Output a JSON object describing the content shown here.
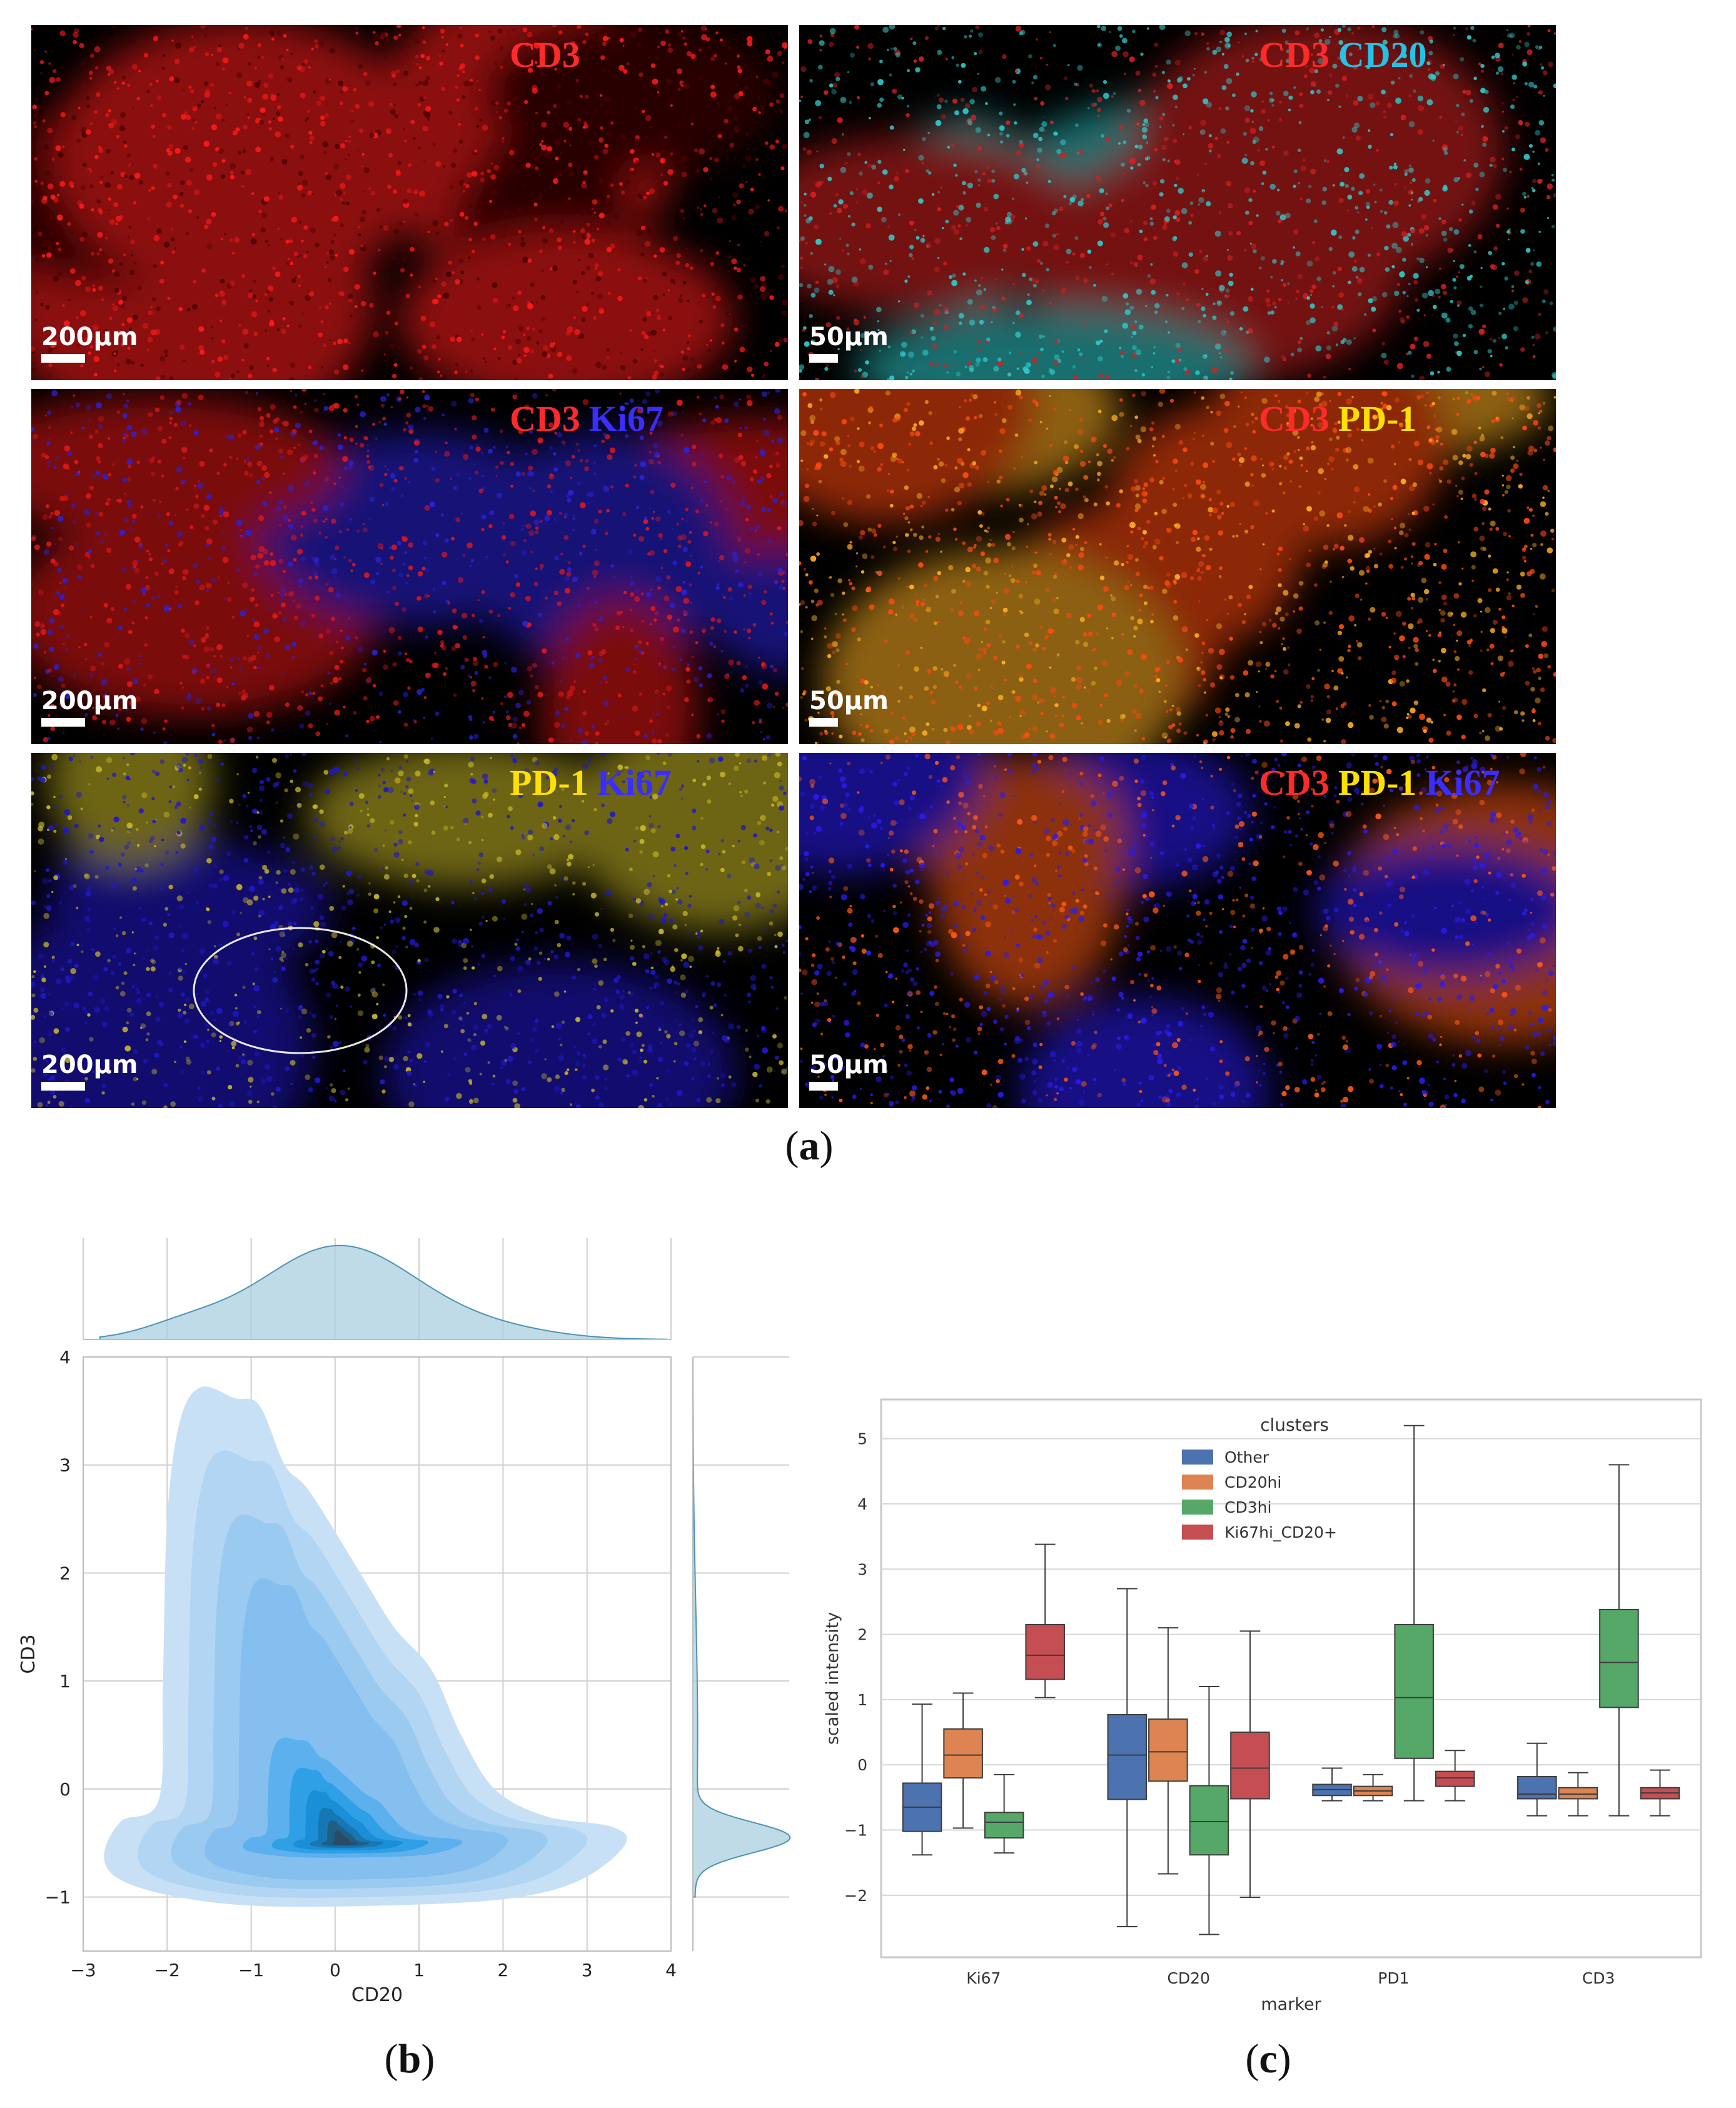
{
  "figure_a": {
    "label": "a",
    "panels": [
      {
        "markers": [
          {
            "text": "CD3",
            "color": "#ff2a2a"
          }
        ],
        "scale_bar": "200µm",
        "background": [
          "#ff1a1a",
          "#4a0000"
        ]
      },
      {
        "markers": [
          {
            "text": "CD3",
            "color": "#ff2a2a"
          },
          {
            "text": "CD20",
            "color": "#23c3e8"
          }
        ],
        "scale_bar": "50µm",
        "background": [
          "#2ec9c9",
          "#d42020"
        ]
      },
      {
        "markers": [
          {
            "text": "CD3",
            "color": "#ff2a2a"
          },
          {
            "text": "Ki67",
            "color": "#3a2dff"
          }
        ],
        "scale_bar": "200µm",
        "background": [
          "#e01818",
          "#2a22d8"
        ]
      },
      {
        "markers": [
          {
            "text": "CD3",
            "color": "#ff2a2a"
          },
          {
            "text": "PD-1",
            "color": "#ffe000"
          }
        ],
        "scale_bar": "50µm",
        "background": [
          "#ff4a10",
          "#ffb020"
        ]
      },
      {
        "markers": [
          {
            "text": "PD-1",
            "color": "#ffe000"
          },
          {
            "text": "Ki67",
            "color": "#3a2dff"
          }
        ],
        "scale_bar": "200µm",
        "background": [
          "#2018c8",
          "#c8b828"
        ]
      },
      {
        "markers": [
          {
            "text": "CD3",
            "color": "#ff2a2a"
          },
          {
            "text": "PD-1",
            "color": "#ffe000"
          },
          {
            "text": "Ki67",
            "color": "#3a2dff"
          }
        ],
        "scale_bar": "50µm",
        "background": [
          "#2a1cf0",
          "#ff5a14"
        ]
      }
    ]
  },
  "figure_b": {
    "label": "b",
    "chart_data": {
      "type": "kde-joint",
      "xlabel": "CD20",
      "ylabel": "CD3",
      "xlim": [
        -3,
        4
      ],
      "ylim": [
        -1.5,
        4
      ],
      "x_ticks": [
        -3,
        -2,
        -1,
        0,
        1,
        2,
        3,
        4
      ],
      "y_ticks": [
        -1,
        0,
        1,
        2,
        3,
        4
      ],
      "density_peak": {
        "x": 0.1,
        "y": -0.5
      },
      "color": "#5aa8e6",
      "marginal_color": "#a9cfe0"
    }
  },
  "figure_c": {
    "label": "c",
    "chart_data": {
      "type": "box",
      "xlabel": "marker",
      "ylabel": "scaled intensity",
      "categories": [
        "Ki67",
        "CD20",
        "PD1",
        "CD3"
      ],
      "ylim": [
        -2.95,
        5.6
      ],
      "y_ticks": [
        -2,
        -1,
        0,
        1,
        2,
        3,
        4,
        5
      ],
      "legend_title": "clusters",
      "legend_position": "top-center",
      "grid": true,
      "series": [
        {
          "name": "Other",
          "color": "#4c72b0",
          "boxes": [
            {
              "whislo": -1.38,
              "q1": -1.02,
              "med": -0.65,
              "q3": -0.28,
              "whishi": 0.93
            },
            {
              "whislo": -2.48,
              "q1": -0.53,
              "med": 0.15,
              "q3": 0.77,
              "whishi": 2.7
            },
            {
              "whislo": -0.55,
              "q1": -0.47,
              "med": -0.38,
              "q3": -0.3,
              "whishi": -0.05
            },
            {
              "whislo": -0.78,
              "q1": -0.52,
              "med": -0.45,
              "q3": -0.18,
              "whishi": 0.33
            }
          ]
        },
        {
          "name": "CD20hi",
          "color": "#dd8452",
          "boxes": [
            {
              "whislo": -0.97,
              "q1": -0.2,
              "med": 0.15,
              "q3": 0.55,
              "whishi": 1.1
            },
            {
              "whislo": -1.67,
              "q1": -0.25,
              "med": 0.2,
              "q3": 0.7,
              "whishi": 2.1
            },
            {
              "whislo": -0.55,
              "q1": -0.47,
              "med": -0.4,
              "q3": -0.33,
              "whishi": -0.15
            },
            {
              "whislo": -0.78,
              "q1": -0.52,
              "med": -0.45,
              "q3": -0.35,
              "whishi": -0.12
            }
          ]
        },
        {
          "name": "CD3hi",
          "color": "#55a868",
          "boxes": [
            {
              "whislo": -1.35,
              "q1": -1.12,
              "med": -0.88,
              "q3": -0.73,
              "whishi": -0.15
            },
            {
              "whislo": -2.6,
              "q1": -1.38,
              "med": -0.87,
              "q3": -0.32,
              "whishi": 1.2
            },
            {
              "whislo": -0.55,
              "q1": 0.1,
              "med": 1.03,
              "q3": 2.15,
              "whishi": 5.2
            },
            {
              "whislo": -0.78,
              "q1": 0.88,
              "med": 1.57,
              "q3": 2.38,
              "whishi": 4.6
            }
          ]
        },
        {
          "name": "Ki67hi_CD20+",
          "color": "#c44e52",
          "boxes": [
            {
              "whislo": 1.03,
              "q1": 1.31,
              "med": 1.68,
              "q3": 2.15,
              "whishi": 3.38
            },
            {
              "whislo": -2.03,
              "q1": -0.52,
              "med": -0.05,
              "q3": 0.5,
              "whishi": 2.05
            },
            {
              "whislo": -0.55,
              "q1": -0.33,
              "med": -0.2,
              "q3": -0.1,
              "whishi": 0.22
            },
            {
              "whislo": -0.78,
              "q1": -0.52,
              "med": -0.43,
              "q3": -0.35,
              "whishi": -0.08
            }
          ]
        }
      ]
    }
  }
}
